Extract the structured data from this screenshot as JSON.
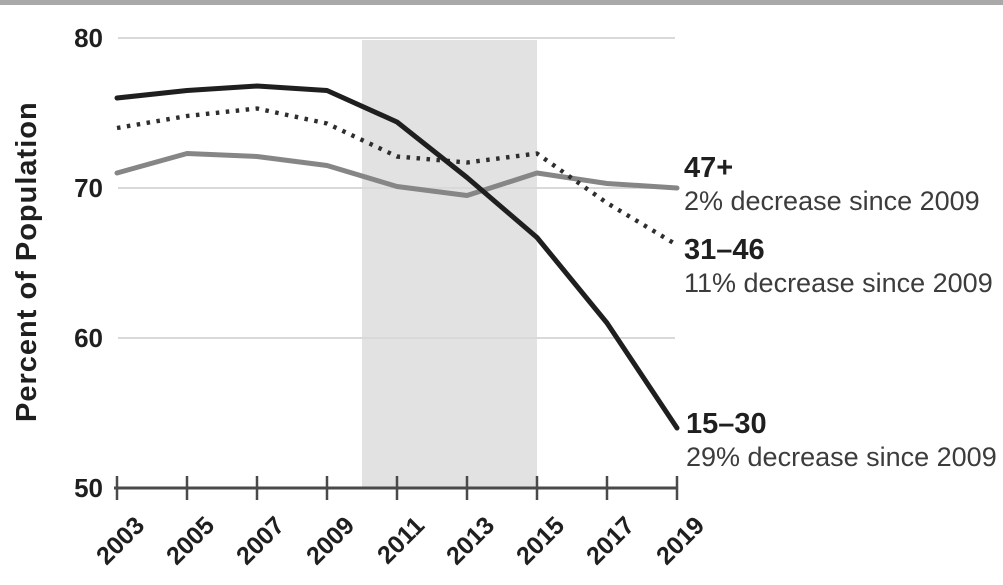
{
  "page": {
    "top_bar_color": "#a9a9a9",
    "background_color": "#ffffff"
  },
  "chart_data": {
    "type": "line",
    "title": "",
    "xlabel": "",
    "ylabel": "Percent of Population",
    "x": [
      2003,
      2005,
      2007,
      2009,
      2011,
      2013,
      2015,
      2017,
      2019
    ],
    "x_tick_labels": [
      "2003",
      "2005",
      "2007",
      "2009",
      "2011",
      "2013",
      "2015",
      "2017",
      "2019"
    ],
    "y_ticks": [
      80,
      70,
      60,
      50
    ],
    "ylim": [
      50,
      80
    ],
    "grid": "horizontal-gridlines-at-60-70-80",
    "legend_position": "right-annotations",
    "highlight_band": {
      "from_year": 2010,
      "to_year": 2015,
      "color": "#e2e2e2"
    },
    "axis_color": "#4a4a4a",
    "gridline_color": "#d9d9d9",
    "series": [
      {
        "name": "47+",
        "annotation": "2% decrease since 2009",
        "style": "solid",
        "color": "#868686",
        "values": [
          71,
          72.3,
          72.1,
          71.5,
          70.1,
          69.5,
          71,
          70.3,
          70
        ]
      },
      {
        "name": "31–46",
        "annotation": "11% decrease since 2009",
        "style": "dotted",
        "color": "#2e2e2e",
        "values": [
          74,
          74.8,
          75.3,
          74.3,
          72.1,
          71.7,
          72.3,
          69,
          66.2
        ]
      },
      {
        "name": "15–30",
        "annotation": "29% decrease since 2009",
        "style": "solid",
        "color": "#1f1f1f",
        "values": [
          76,
          76.5,
          76.8,
          76.5,
          74.4,
          70.7,
          66.7,
          61,
          54
        ]
      }
    ]
  }
}
